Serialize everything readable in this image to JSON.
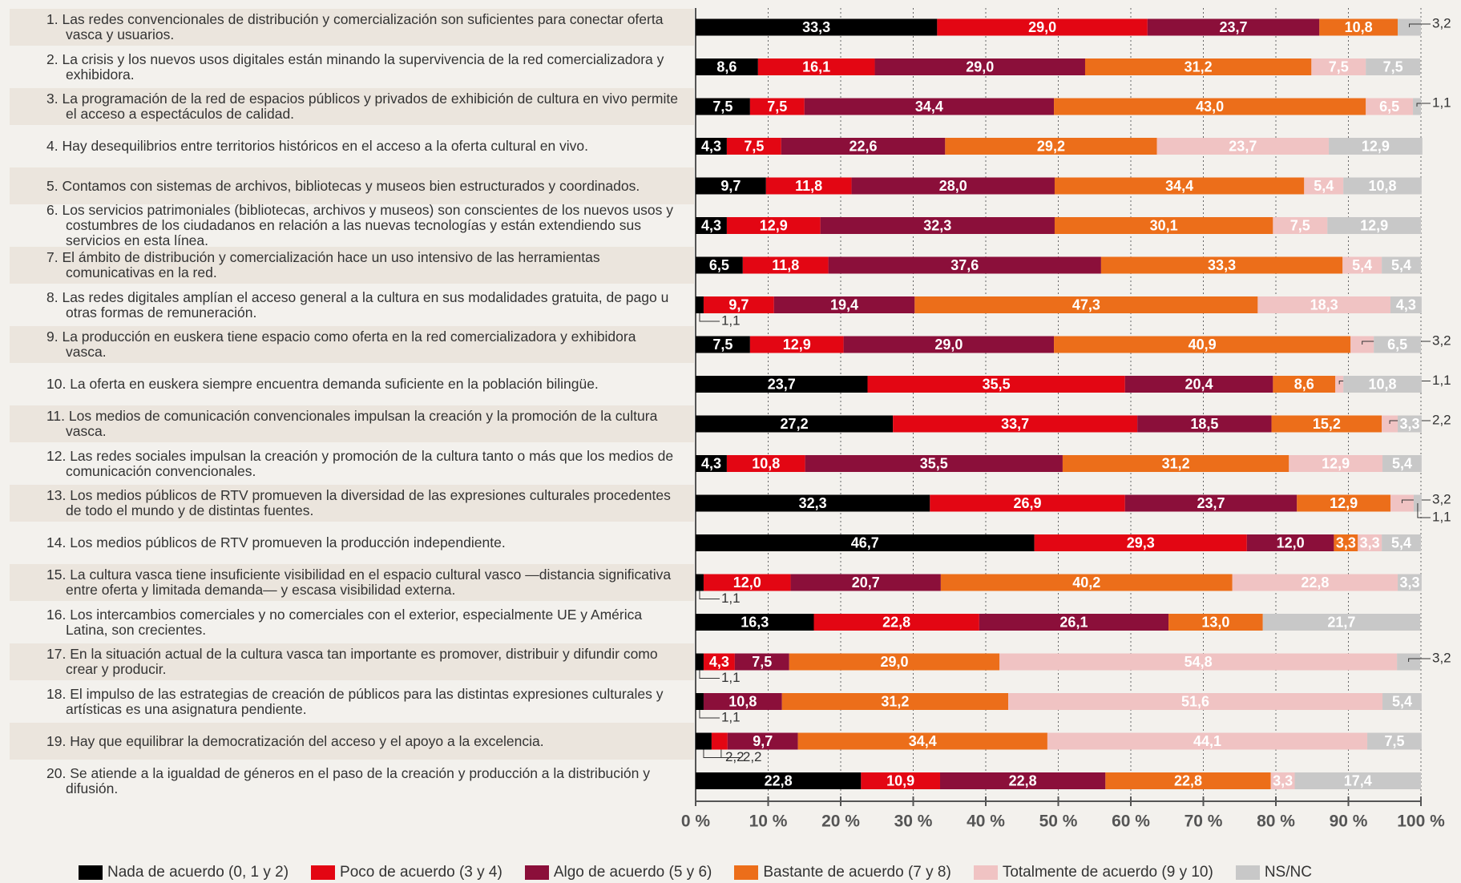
{
  "chart_data": {
    "type": "stacked_bar_horizontal",
    "categories": [
      "1. Las redes convencionales de distribución y comercialización son suficientes para conectar oferta vasca y usuarios.",
      "2. La crisis y los nuevos usos digitales están minando la supervivencia de la red comercializadora y exhibidora.",
      "3. La programación de la red de espacios públicos y privados de exhibición de cultura en vivo permite el acceso a espectáculos de calidad.",
      "4. Hay desequilibrios entre territorios históricos en el acceso a la oferta cultural en vivo.",
      "5. Contamos con sistemas de archivos, bibliotecas y museos bien estructurados y coordinados.",
      "6. Los servicios patrimoniales (bibliotecas, archivos y museos) son conscientes de los nuevos usos y costumbres de los ciudadanos en relación a las nuevas tecnologías y están extendiendo sus servicios en esta línea.",
      "7. El ámbito de distribución y comercialización hace un uso intensivo de las herramientas comunicativas en la red.",
      "8. Las redes digitales amplían el acceso general a la cultura en sus modalidades gratuita, de pago u otras formas de remuneración.",
      "9. La producción en euskera tiene espacio como oferta en la red comercializadora y exhibidora vasca.",
      "10. La oferta en euskera siempre encuentra demanda suficiente en la población bilingüe.",
      "11. Los medios de comunicación convencionales impulsan la creación y la promoción de la cultura vasca.",
      "12. Las redes sociales  impulsan la creación y promoción de la cultura tanto o más que los medios de comunicación convencionales.",
      "13. Los medios públicos de RTV promueven la diversidad de las expresiones culturales procedentes de todo el mundo y de distintas fuentes.",
      "14. Los medios públicos de RTV promueven la producción independiente.",
      "15. La cultura vasca tiene insuficiente visibilidad en el espacio cultural  vasco —distancia significativa entre oferta y limitada demanda— y escasa visibilidad externa.",
      "16. Los intercambios comerciales y no comerciales con el exterior, especialmente UE y América Latina, son crecientes.",
      "17. En la situación actual de la cultura vasca tan importante es promover, distribuir y difundir como crear y producir.",
      "18. El impulso de las estrategias de creación de públicos para las distintas expresiones culturales y artísticas es una asignatura pendiente.",
      "19. Hay que equilibrar la democratización del acceso y el apoyo a la excelencia.",
      "20. Se atiende a la igualdad de géneros en el paso de la creación y producción a la distribución y difusión."
    ],
    "series": [
      {
        "name": "Nada de acuerdo (0, 1 y 2)",
        "color": "#000000",
        "values": [
          33.3,
          8.6,
          7.5,
          4.3,
          9.7,
          4.3,
          6.5,
          1.1,
          7.5,
          23.7,
          27.2,
          4.3,
          32.3,
          46.7,
          1.1,
          16.3,
          1.1,
          1.1,
          2.2,
          22.8
        ],
        "value_labels": [
          "33,3",
          "8,6",
          "7,5",
          "4,3",
          "9,7",
          "4,3",
          "6,5",
          "1,1",
          "7,5",
          "23,7",
          "27,2",
          "4,3",
          "32,3",
          "46,7",
          "1,1",
          "16,3",
          "1,1",
          "1,1",
          "2,2",
          "22,8"
        ]
      },
      {
        "name": "Poco de acuerdo (3 y 4)",
        "color": "#e30613",
        "values": [
          29.0,
          16.1,
          7.5,
          7.5,
          11.8,
          12.9,
          11.8,
          9.7,
          12.9,
          35.5,
          33.7,
          10.8,
          26.9,
          29.3,
          12.0,
          22.8,
          4.3,
          null,
          2.2,
          10.9
        ],
        "value_labels": [
          "29,0",
          "16,1",
          "7,5",
          "7,5",
          "11,8",
          "12,9",
          "11,8",
          "9,7",
          "12,9",
          "35,5",
          "33,7",
          "10,8",
          "26,9",
          "29,3",
          "12,0",
          "22,8",
          "4,3",
          null,
          "2,2",
          "10,9"
        ]
      },
      {
        "name": "Algo de acuerdo (5 y 6)",
        "color": "#8b0f3a",
        "values": [
          23.7,
          29.0,
          34.4,
          22.6,
          28.0,
          32.3,
          37.6,
          19.4,
          29.0,
          20.4,
          18.5,
          35.5,
          23.7,
          12.0,
          20.7,
          26.1,
          7.5,
          10.8,
          9.7,
          22.8
        ],
        "value_labels": [
          "23,7",
          "29,0",
          "34,4",
          "22,6",
          "28,0",
          "32,3",
          "37,6",
          "19,4",
          "29,0",
          "20,4",
          "18,5",
          "35,5",
          "23,7",
          "12,0",
          "20,7",
          "26,1",
          "7,5",
          "10,8",
          "9,7",
          "22,8"
        ]
      },
      {
        "name": "Bastante de acuerdo (7 y 8)",
        "color": "#ec6e1a",
        "values": [
          10.8,
          31.2,
          43.0,
          29.2,
          34.4,
          30.1,
          33.3,
          47.3,
          40.9,
          8.6,
          15.2,
          31.2,
          12.9,
          3.3,
          40.2,
          13.0,
          29.0,
          31.2,
          34.4,
          22.8
        ],
        "value_labels": [
          "10,8",
          "31,2",
          "43,0",
          "29,2",
          "34,4",
          "30,1",
          "33,3",
          "47,3",
          "40,9",
          "8,6",
          "15,2",
          "31,2",
          "12,9",
          "3,3",
          "40,2",
          "13,0",
          "29,0",
          "31,2",
          "34,4",
          "22,8"
        ]
      },
      {
        "name": "Totalmente de acuerdo (9 y 10)",
        "color": "#f0c3c3",
        "values": [
          null,
          7.5,
          6.5,
          23.7,
          5.4,
          7.5,
          5.4,
          18.3,
          3.2,
          1.1,
          2.2,
          12.9,
          3.2,
          3.3,
          22.8,
          null,
          54.8,
          51.6,
          44.1,
          3.3
        ],
        "value_labels": [
          null,
          "7,5",
          "6,5",
          "23,7",
          "5,4",
          "7,5",
          "5,4",
          "18,3",
          "3,2",
          "1,1",
          "2,2",
          "12,9",
          "3,2",
          "3,3",
          "22,8",
          null,
          "54,8",
          "51,6",
          "44,1",
          "3,3"
        ]
      },
      {
        "name": "NS/NC",
        "color": "#c8c8c8",
        "values": [
          3.2,
          7.5,
          1.1,
          12.9,
          10.8,
          12.9,
          5.4,
          4.3,
          6.5,
          10.8,
          3.3,
          5.4,
          1.1,
          5.4,
          3.3,
          21.7,
          3.2,
          5.4,
          7.5,
          17.4
        ],
        "value_labels": [
          "3,2",
          "7,5",
          "1,1",
          "12,9",
          "10,8",
          "12,9",
          "5,4",
          "4,3",
          "6,5",
          "10,8",
          "3,3",
          "5,4",
          "1,1",
          "5,4",
          "3,3",
          "21,7",
          "3,2",
          "5,4",
          "7,5",
          "17,4"
        ]
      }
    ],
    "xlim": [
      0,
      100
    ],
    "xticks": [
      {
        "value": 0,
        "label": "0 %"
      },
      {
        "value": 10,
        "label": "10 %"
      },
      {
        "value": 20,
        "label": "20 %"
      },
      {
        "value": 30,
        "label": "30 %"
      },
      {
        "value": 40,
        "label": "40 %"
      },
      {
        "value": 50,
        "label": "50 %"
      },
      {
        "value": 60,
        "label": "60 %"
      },
      {
        "value": 70,
        "label": "70 %"
      },
      {
        "value": 80,
        "label": "80 %"
      },
      {
        "value": 90,
        "label": "90 %"
      },
      {
        "value": 100,
        "label": "100 %"
      }
    ],
    "grid": true,
    "legend": "bottom"
  }
}
